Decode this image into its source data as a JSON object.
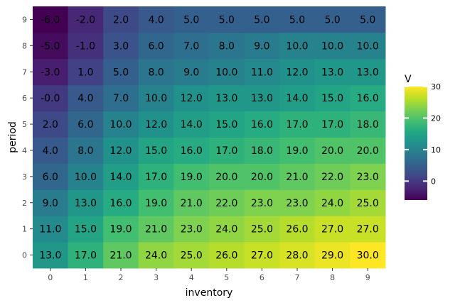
{
  "chart_data": {
    "type": "heatmap",
    "xlabel": "inventory",
    "ylabel": "period",
    "x": [
      0,
      1,
      2,
      3,
      4,
      5,
      6,
      7,
      8,
      9
    ],
    "y": [
      0,
      1,
      2,
      3,
      4,
      5,
      6,
      7,
      8,
      9
    ],
    "x_tick_labels": [
      "0",
      "1",
      "2",
      "3",
      "4",
      "5",
      "6",
      "7",
      "8",
      "9"
    ],
    "y_tick_labels": [
      "0",
      "1",
      "2",
      "3",
      "4",
      "5",
      "6",
      "7",
      "8",
      "9"
    ],
    "values": [
      [
        13.0,
        17.0,
        21.0,
        24.0,
        25.0,
        26.0,
        27.0,
        28.0,
        29.0,
        30.0
      ],
      [
        11.0,
        15.0,
        19.0,
        21.0,
        23.0,
        24.0,
        25.0,
        26.0,
        27.0,
        27.0
      ],
      [
        9.0,
        13.0,
        16.0,
        19.0,
        21.0,
        22.0,
        23.0,
        23.0,
        24.0,
        25.0
      ],
      [
        6.0,
        10.0,
        14.0,
        17.0,
        19.0,
        20.0,
        20.0,
        21.0,
        22.0,
        23.0
      ],
      [
        4.0,
        8.0,
        12.0,
        15.0,
        16.0,
        17.0,
        18.0,
        19.0,
        20.0,
        20.0
      ],
      [
        2.0,
        6.0,
        10.0,
        12.0,
        14.0,
        15.0,
        16.0,
        17.0,
        17.0,
        18.0
      ],
      [
        -0.0,
        4.0,
        7.0,
        10.0,
        12.0,
        13.0,
        13.0,
        14.0,
        15.0,
        16.0
      ],
      [
        -3.0,
        1.0,
        5.0,
        8.0,
        9.0,
        10.0,
        11.0,
        12.0,
        13.0,
        13.0
      ],
      [
        -5.0,
        -1.0,
        3.0,
        6.0,
        7.0,
        8.0,
        9.0,
        10.0,
        10.0,
        10.0
      ],
      [
        -6.0,
        -2.0,
        2.0,
        4.0,
        5.0,
        5.0,
        5.0,
        5.0,
        5.0,
        5.0
      ]
    ],
    "cell_labels": [
      [
        "13.0",
        "17.0",
        "21.0",
        "24.0",
        "25.0",
        "26.0",
        "27.0",
        "28.0",
        "29.0",
        "30.0"
      ],
      [
        "11.0",
        "15.0",
        "19.0",
        "21.0",
        "23.0",
        "24.0",
        "25.0",
        "26.0",
        "27.0",
        "27.0"
      ],
      [
        "9.0",
        "13.0",
        "16.0",
        "19.0",
        "21.0",
        "22.0",
        "23.0",
        "23.0",
        "24.0",
        "25.0"
      ],
      [
        "6.0",
        "10.0",
        "14.0",
        "17.0",
        "19.0",
        "20.0",
        "20.0",
        "21.0",
        "22.0",
        "23.0"
      ],
      [
        "4.0",
        "8.0",
        "12.0",
        "15.0",
        "16.0",
        "17.0",
        "18.0",
        "19.0",
        "20.0",
        "20.0"
      ],
      [
        "2.0",
        "6.0",
        "10.0",
        "12.0",
        "14.0",
        "15.0",
        "16.0",
        "17.0",
        "17.0",
        "18.0"
      ],
      [
        "-0.0",
        "4.0",
        "7.0",
        "10.0",
        "12.0",
        "13.0",
        "13.0",
        "14.0",
        "15.0",
        "16.0"
      ],
      [
        "-3.0",
        "1.0",
        "5.0",
        "8.0",
        "9.0",
        "10.0",
        "11.0",
        "12.0",
        "13.0",
        "13.0"
      ],
      [
        "-5.0",
        "-1.0",
        "3.0",
        "6.0",
        "7.0",
        "8.0",
        "9.0",
        "10.0",
        "10.0",
        "10.0"
      ],
      [
        "-6.0",
        "-2.0",
        "2.0",
        "4.0",
        "5.0",
        "5.0",
        "5.0",
        "5.0",
        "5.0",
        "5.0"
      ]
    ],
    "colorscale": "viridis",
    "color_range": [
      -6,
      30
    ],
    "legend": {
      "title": "V",
      "placement": "right",
      "ticks": [
        0,
        10,
        20,
        30
      ],
      "tick_labels": [
        "0",
        "10",
        "20",
        "30"
      ]
    },
    "grid": false
  }
}
